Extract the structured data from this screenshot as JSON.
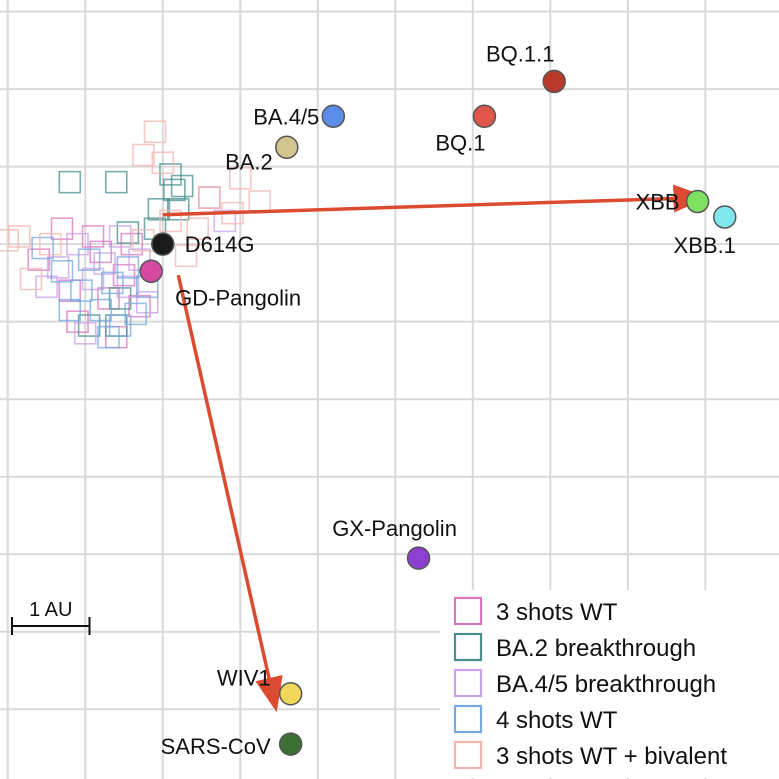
{
  "chart_data": {
    "type": "scatter",
    "title": "",
    "xlabel": "",
    "ylabel": "",
    "xlim": [
      -2.1,
      7.95
    ],
    "ylim": [
      -9.9,
      0.15
    ],
    "grid": true,
    "grid_step_au": 1,
    "scale_bar": {
      "label": "1 AU",
      "length_au": 1
    },
    "antigens": [
      {
        "name": "D614G",
        "x": 0,
        "y": -3,
        "color": "#1a1a1a"
      },
      {
        "name": "GD-Pangolin",
        "x": -0.15,
        "y": -3.35,
        "color": "#d64aa4"
      },
      {
        "name": "BA.2",
        "x": 1.6,
        "y": -1.75,
        "color": "#d2c58e"
      },
      {
        "name": "BA.4/5",
        "x": 2.2,
        "y": -1.35,
        "color": "#5b8ce8"
      },
      {
        "name": "BQ.1",
        "x": 4.15,
        "y": -1.35,
        "color": "#e0564b"
      },
      {
        "name": "BQ.1.1",
        "x": 5.05,
        "y": -0.9,
        "color": "#b83a2a"
      },
      {
        "name": "XBB",
        "x": 6.9,
        "y": -2.45,
        "color": "#7ee060"
      },
      {
        "name": "XBB.1",
        "x": 7.25,
        "y": -2.65,
        "color": "#7ee8ee"
      },
      {
        "name": "GX-Pangolin",
        "x": 3.3,
        "y": -7.05,
        "color": "#8c3fd0"
      },
      {
        "name": "WIV1",
        "x": 1.65,
        "y": -8.8,
        "color": "#f2d85a"
      },
      {
        "name": "SARS-CoV",
        "x": 1.65,
        "y": -9.45,
        "color": "#3d6e33"
      }
    ],
    "arrows": [
      {
        "from": [
          0,
          -2.62
        ],
        "to": [
          6.95,
          -2.4
        ],
        "color": "#dc4b30"
      },
      {
        "from": [
          0.2,
          -3.4
        ],
        "to": [
          1.45,
          -8.95
        ],
        "color": "#dc4b30"
      }
    ],
    "series": [
      {
        "name": "3 shots WT",
        "color": "#d977bd",
        "points": [
          [
            -0.8,
            -3.1
          ],
          [
            -0.5,
            -3.4
          ],
          [
            -1.2,
            -3.6
          ],
          [
            -0.3,
            -3.8
          ],
          [
            -0.9,
            -2.9
          ],
          [
            -0.6,
            -4.2
          ],
          [
            -1.6,
            -3.2
          ],
          [
            -1.1,
            -4.0
          ],
          [
            -0.4,
            -3.0
          ],
          [
            -0.7,
            -3.7
          ],
          [
            -1.3,
            -2.8
          ],
          [
            0.6,
            -2.4
          ]
        ]
      },
      {
        "name": "BA.2 breakthrough",
        "color": "#4a8f8f",
        "points": [
          [
            -1.2,
            -2.2
          ],
          [
            -0.6,
            -2.2
          ],
          [
            0.1,
            -2.1
          ],
          [
            0.15,
            -2.3
          ],
          [
            0.2,
            -2.55
          ],
          [
            -0.05,
            -2.55
          ],
          [
            -0.45,
            -2.85
          ],
          [
            -0.6,
            -4.05
          ],
          [
            -0.95,
            -4.05
          ],
          [
            -0.55,
            -3.7
          ],
          [
            -0.1,
            -2.8
          ],
          [
            0.25,
            -2.25
          ]
        ]
      },
      {
        "name": "BA.4/5 breakthrough",
        "color": "#c8a2e6",
        "points": [
          [
            -1.1,
            -3.0
          ],
          [
            -0.75,
            -3.25
          ],
          [
            -0.45,
            -3.55
          ],
          [
            -0.9,
            -3.45
          ],
          [
            -1.35,
            -3.3
          ],
          [
            -0.3,
            -3.2
          ],
          [
            -0.55,
            -2.9
          ],
          [
            0.8,
            -2.7
          ],
          [
            -0.2,
            -3.75
          ],
          [
            -1.5,
            -3.55
          ],
          [
            -1.0,
            -4.15
          ]
        ]
      },
      {
        "name": "4 shots WT",
        "color": "#77a8e0",
        "points": [
          [
            -1.3,
            -3.35
          ],
          [
            -1.05,
            -3.6
          ],
          [
            -0.8,
            -3.85
          ],
          [
            -0.55,
            -4.05
          ],
          [
            -0.35,
            -3.9
          ],
          [
            -0.95,
            -3.2
          ],
          [
            -0.65,
            -3.5
          ],
          [
            -1.55,
            -3.05
          ],
          [
            -0.2,
            -3.55
          ],
          [
            -0.7,
            -4.2
          ],
          [
            -1.2,
            -3.85
          ],
          [
            -0.45,
            -3.3
          ]
        ]
      },
      {
        "name": "3 shots WT + bivalent",
        "color": "#f0b7b0",
        "points": [
          [
            -2.0,
            -2.95
          ],
          [
            -1.7,
            -3.45
          ],
          [
            -1.45,
            -3.0
          ],
          [
            -0.25,
            -2.95
          ],
          [
            0.1,
            -2.7
          ],
          [
            0.45,
            -2.8
          ],
          [
            0.6,
            -2.4
          ],
          [
            1.25,
            -2.45
          ],
          [
            0.9,
            -2.6
          ],
          [
            0.0,
            -1.95
          ],
          [
            1.0,
            -2.15
          ],
          [
            -0.1,
            -1.55
          ],
          [
            -0.25,
            -1.85
          ],
          [
            -1.85,
            -2.9
          ],
          [
            0.3,
            -3.15
          ]
        ]
      }
    ]
  }
}
